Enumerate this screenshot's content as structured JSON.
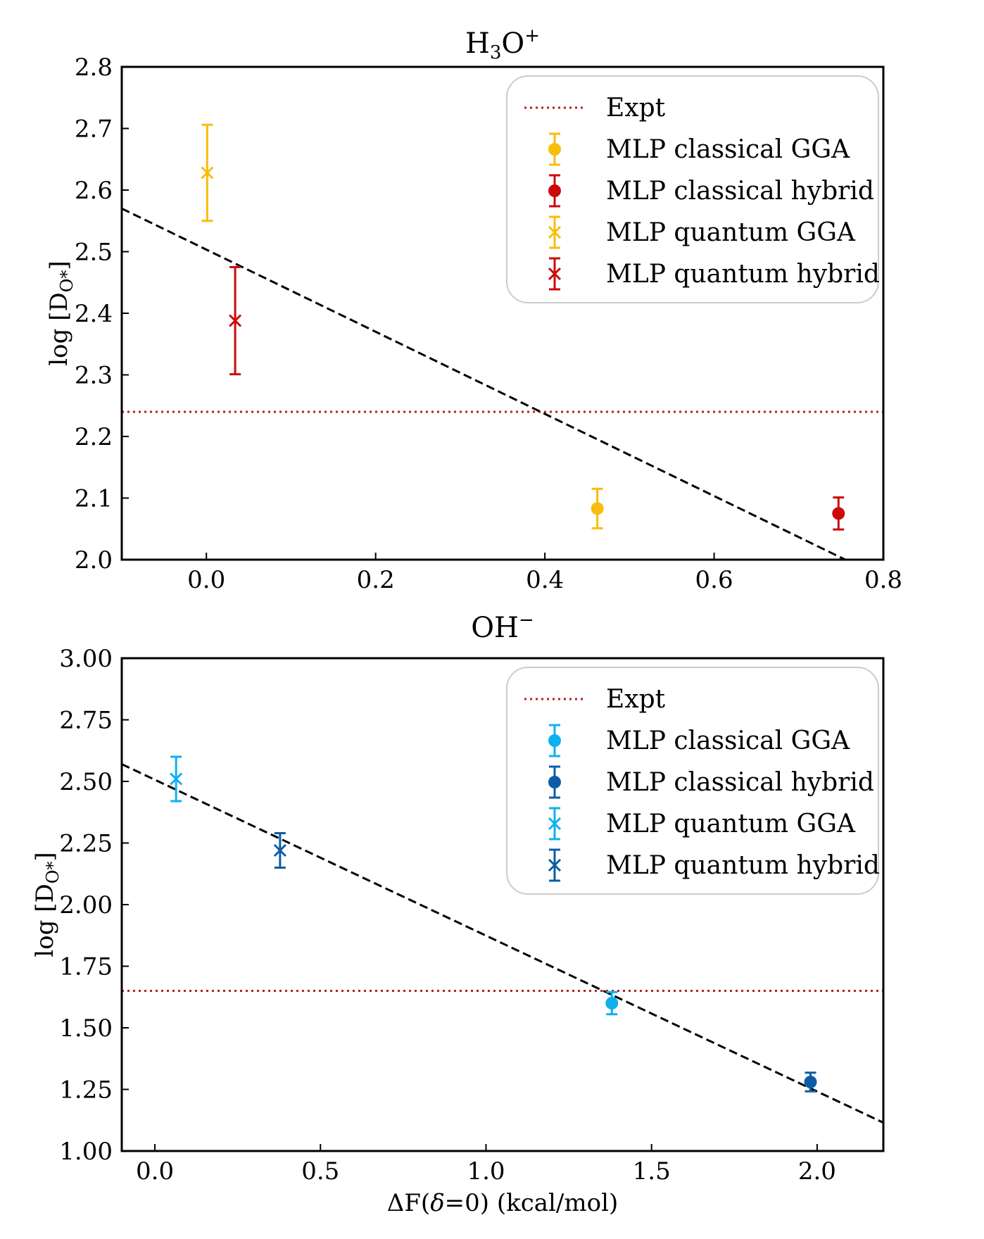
{
  "chart_data": [
    {
      "type": "scatter",
      "title": "H₃O⁺",
      "title_main": "H",
      "title_sub": "3",
      "title_rest": "O",
      "title_sup": "+",
      "xlabel": "",
      "ylabel_main": "log [D",
      "ylabel_sub": "O*",
      "ylabel_end": "]",
      "xlim": [
        -0.1,
        0.8
      ],
      "ylim": [
        2.0,
        2.8
      ],
      "xticks": [
        "0.0",
        "0.2",
        "0.4",
        "0.6",
        "0.8"
      ],
      "xtick_values": [
        0.0,
        0.2,
        0.4,
        0.6,
        0.8
      ],
      "yticks": [
        "2.0",
        "2.1",
        "2.2",
        "2.3",
        "2.4",
        "2.5",
        "2.6",
        "2.7",
        "2.8"
      ],
      "ytick_values": [
        2.0,
        2.1,
        2.2,
        2.3,
        2.4,
        2.5,
        2.6,
        2.7,
        2.8
      ],
      "expt": 2.24,
      "fit_line": {
        "x": [
          -0.1,
          0.755
        ],
        "y": [
          2.57,
          2.0
        ]
      },
      "series": [
        {
          "name": "Expt",
          "marker": "line",
          "color": "#b22222",
          "points": []
        },
        {
          "name": "MLP classical GGA",
          "marker": "o",
          "color": "#f9bd0b",
          "points": [
            {
              "x": 0.462,
              "y": 2.083,
              "err": 0.032
            }
          ]
        },
        {
          "name": "MLP classical hybrid",
          "marker": "o",
          "color": "#cc0a0a",
          "points": [
            {
              "x": 0.747,
              "y": 2.075,
              "err": 0.026
            }
          ]
        },
        {
          "name": "MLP quantum GGA",
          "marker": "x",
          "color": "#f9bd0b",
          "points": [
            {
              "x": 0.001,
              "y": 2.628,
              "err": 0.078
            }
          ]
        },
        {
          "name": "MLP quantum hybrid",
          "marker": "x",
          "color": "#cc0a0a",
          "points": [
            {
              "x": 0.034,
              "y": 2.388,
              "err": 0.087
            }
          ]
        }
      ]
    },
    {
      "type": "scatter",
      "title": "OH⁻",
      "title_main": "OH",
      "title_sup": "−",
      "xlabel": "ΔF(δ=0) (kcal/mol)",
      "xlabel_pre": "ΔF(",
      "xlabel_italic": "δ",
      "xlabel_post": "=0) (kcal/mol)",
      "ylabel_main": "log [D",
      "ylabel_sub": "O*",
      "ylabel_end": "]",
      "xlim": [
        -0.1,
        2.2
      ],
      "ylim": [
        1.0,
        3.0
      ],
      "xticks": [
        "0.0",
        "0.5",
        "1.0",
        "1.5",
        "2.0"
      ],
      "xtick_values": [
        0.0,
        0.5,
        1.0,
        1.5,
        2.0
      ],
      "yticks": [
        "1.00",
        "1.25",
        "1.50",
        "1.75",
        "2.00",
        "2.25",
        "2.50",
        "2.75",
        "3.00"
      ],
      "ytick_values": [
        1.0,
        1.25,
        1.5,
        1.75,
        2.0,
        2.25,
        2.5,
        2.75,
        3.0
      ],
      "expt": 1.65,
      "fit_line": {
        "x": [
          -0.1,
          2.2
        ],
        "y": [
          2.57,
          1.115
        ]
      },
      "series": [
        {
          "name": "Expt",
          "marker": "line",
          "color": "#b22222",
          "points": []
        },
        {
          "name": "MLP classical GGA",
          "marker": "o",
          "color": "#0fb0ee",
          "points": [
            {
              "x": 1.38,
              "y": 1.6,
              "err": 0.045
            }
          ]
        },
        {
          "name": "MLP classical hybrid",
          "marker": "o",
          "color": "#0c5da5",
          "points": [
            {
              "x": 1.98,
              "y": 1.28,
              "err": 0.038
            }
          ]
        },
        {
          "name": "MLP quantum GGA",
          "marker": "x",
          "color": "#0fb0ee",
          "points": [
            {
              "x": 0.064,
              "y": 2.51,
              "err": 0.09
            }
          ]
        },
        {
          "name": "MLP quantum hybrid",
          "marker": "x",
          "color": "#0c5da5",
          "points": [
            {
              "x": 0.378,
              "y": 2.22,
              "err": 0.07
            }
          ]
        }
      ]
    }
  ]
}
